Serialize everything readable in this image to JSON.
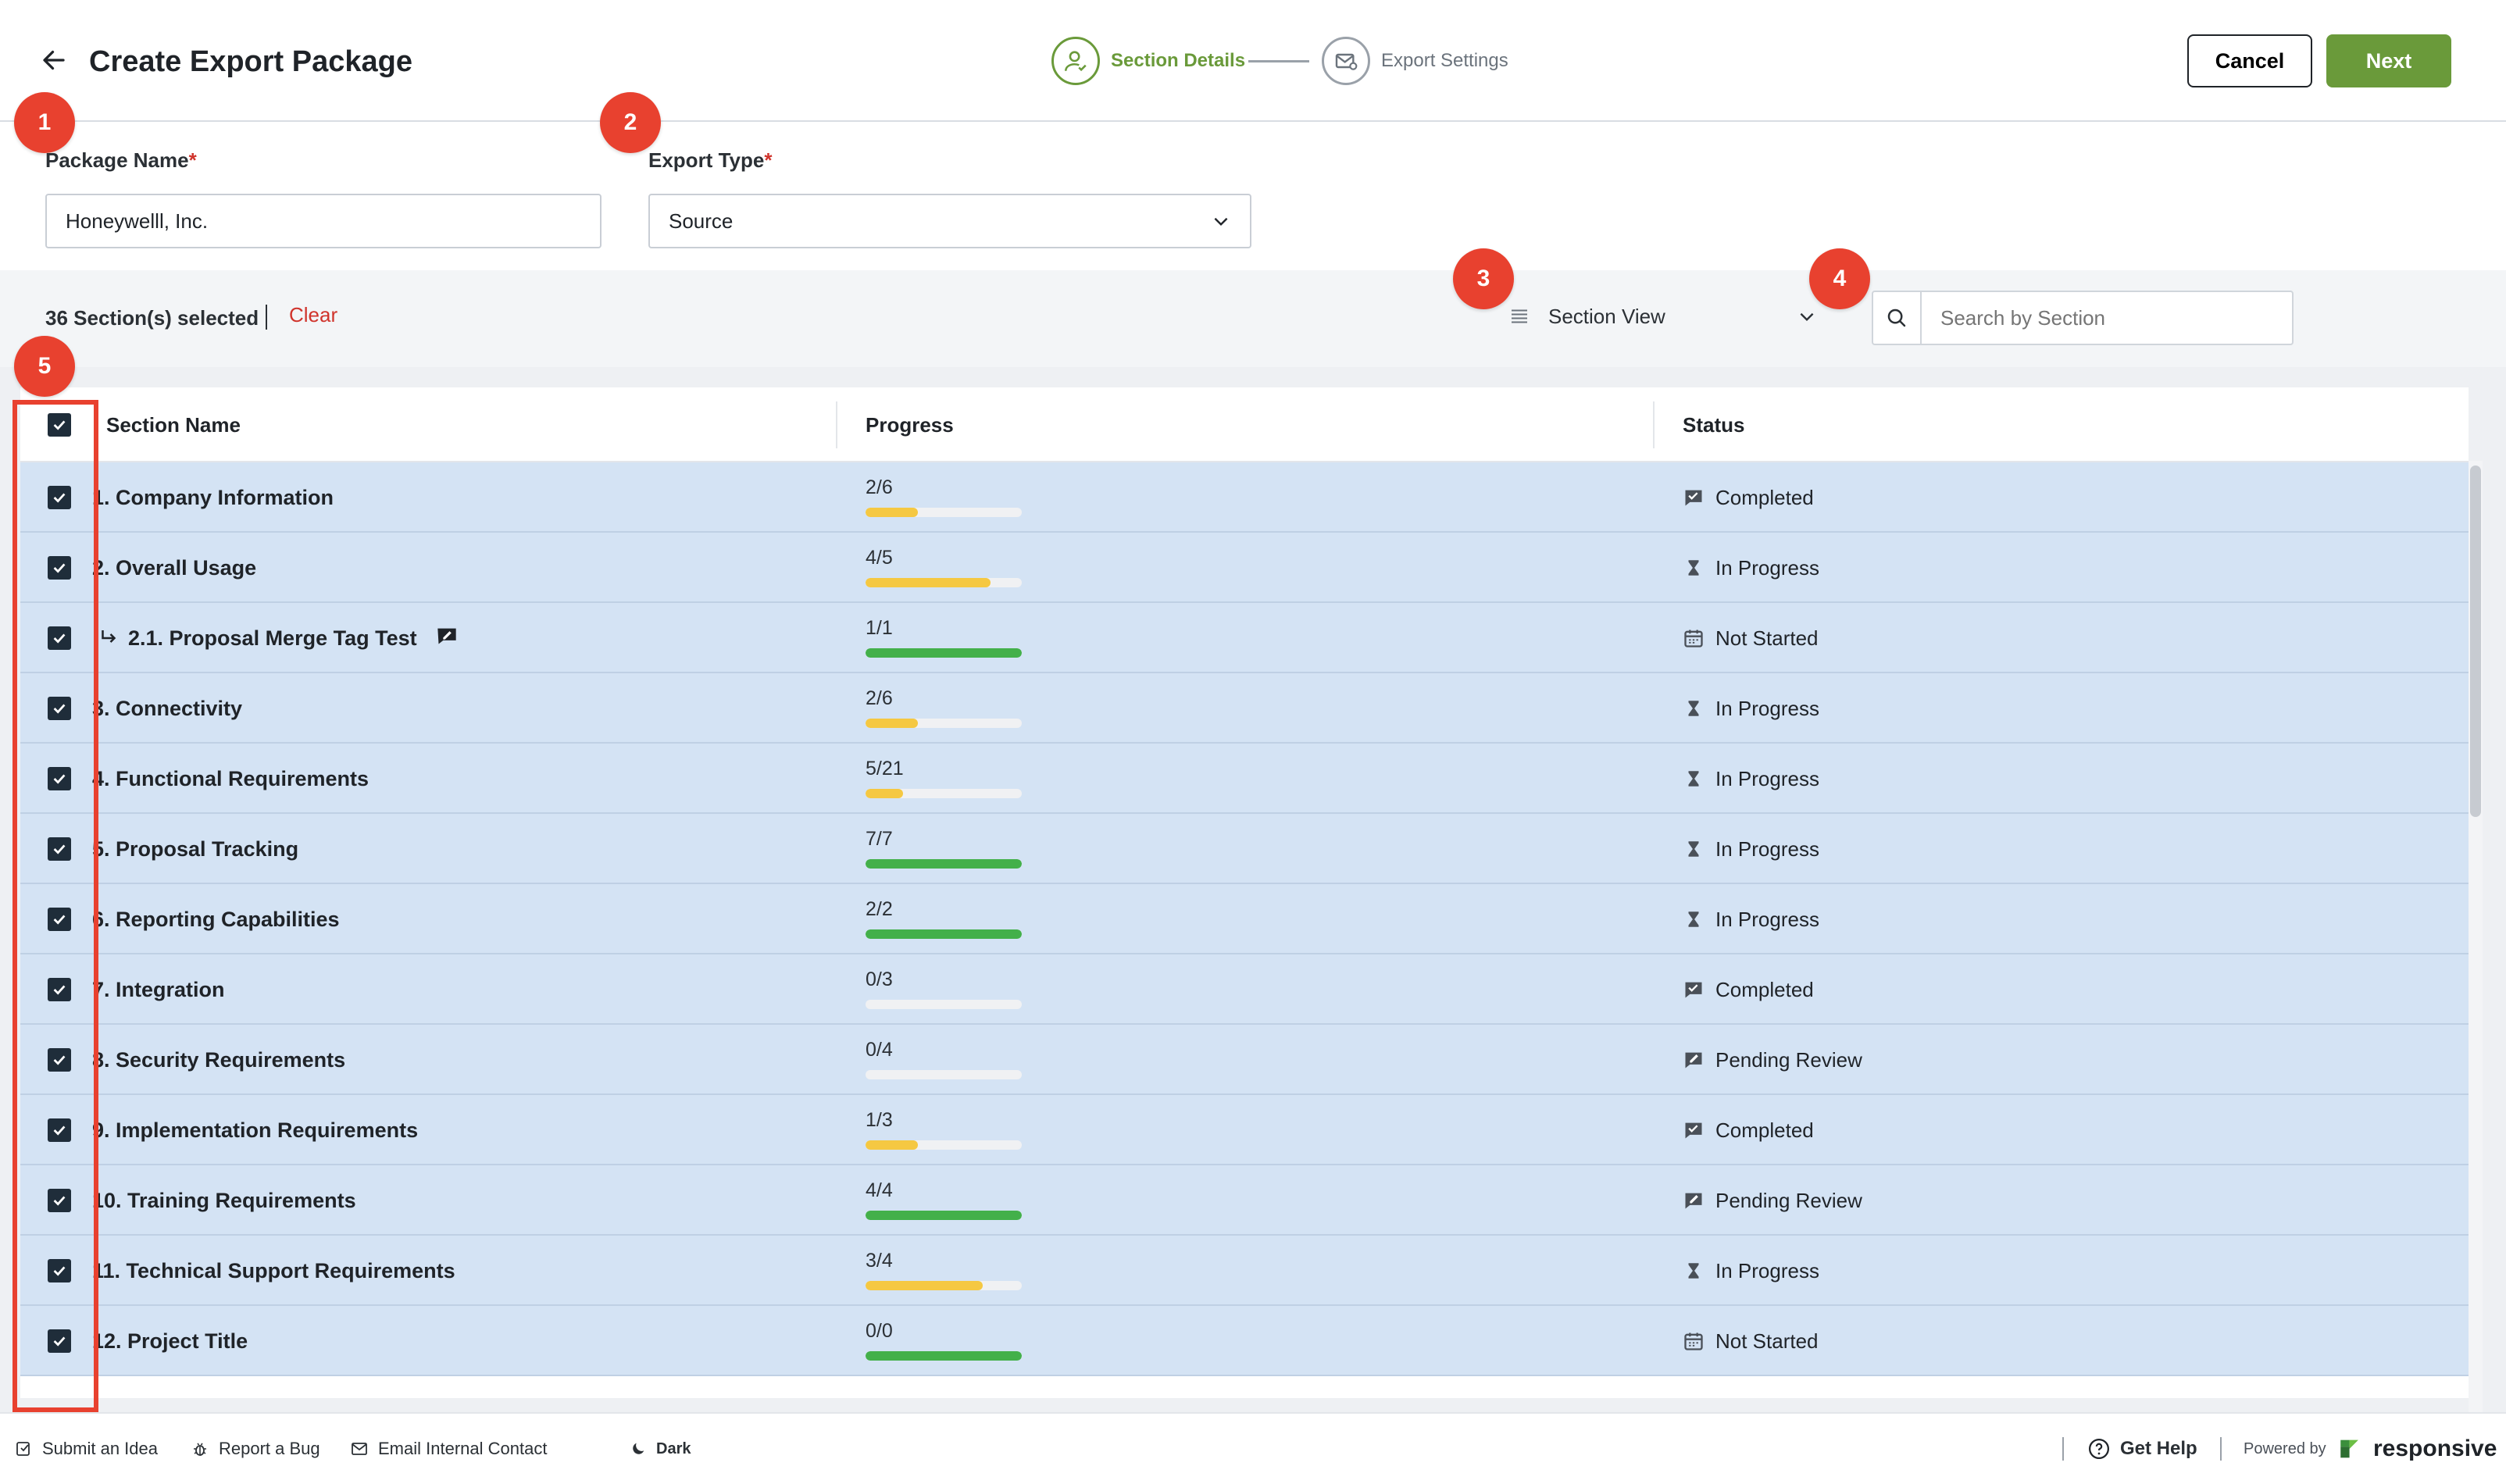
{
  "header": {
    "title": "Create Export Package",
    "steps": [
      {
        "label": "Section Details",
        "active": true
      },
      {
        "label": "Export Settings",
        "active": false
      }
    ],
    "cancel_label": "Cancel",
    "next_label": "Next"
  },
  "markers": [
    "1",
    "2",
    "3",
    "4",
    "5"
  ],
  "form": {
    "package_name_label": "Package Name",
    "package_name_value": "Honeywelll, Inc.",
    "export_type_label": "Export Type",
    "export_type_value": "Source",
    "required_mark": "*"
  },
  "toolbar": {
    "selected_text": "36 Section(s) selected",
    "clear_label": "Clear",
    "view_label": "Section View",
    "search_placeholder": "Search by Section"
  },
  "table": {
    "columns": [
      "Section Name",
      "Progress",
      "Status"
    ],
    "rows": [
      {
        "name": "1. Company Information",
        "progress": "2/6",
        "fraction": 0.333,
        "color": "#f5c842",
        "status": "Completed",
        "status_icon": "completed-icon",
        "indent": false
      },
      {
        "name": "2. Overall Usage",
        "progress": "4/5",
        "fraction": 0.8,
        "color": "#f5c842",
        "status": "In Progress",
        "status_icon": "hourglass-icon",
        "indent": false
      },
      {
        "name": "2.1. Proposal Merge Tag Test",
        "progress": "1/1",
        "fraction": 1.0,
        "color": "#43b04a",
        "status": "Not Started",
        "status_icon": "calendar-icon",
        "indent": true
      },
      {
        "name": "3. Connectivity",
        "progress": "2/6",
        "fraction": 0.333,
        "color": "#f5c842",
        "status": "In Progress",
        "status_icon": "hourglass-icon",
        "indent": false
      },
      {
        "name": "4. Functional Requirements",
        "progress": "5/21",
        "fraction": 0.238,
        "color": "#f5c842",
        "status": "In Progress",
        "status_icon": "hourglass-icon",
        "indent": false
      },
      {
        "name": "5. Proposal Tracking",
        "progress": "7/7",
        "fraction": 1.0,
        "color": "#43b04a",
        "status": "In Progress",
        "status_icon": "hourglass-icon",
        "indent": false
      },
      {
        "name": "6. Reporting Capabilities",
        "progress": "2/2",
        "fraction": 1.0,
        "color": "#43b04a",
        "status": "In Progress",
        "status_icon": "hourglass-icon",
        "indent": false
      },
      {
        "name": "7. Integration",
        "progress": "0/3",
        "fraction": 0,
        "color": "#f5c842",
        "status": "Completed",
        "status_icon": "completed-icon",
        "indent": false
      },
      {
        "name": "8. Security Requirements",
        "progress": "0/4",
        "fraction": 0,
        "color": "#f5c842",
        "status": "Pending Review",
        "status_icon": "review-icon",
        "indent": false
      },
      {
        "name": "9. Implementation Requirements",
        "progress": "1/3",
        "fraction": 0.333,
        "color": "#f5c842",
        "status": "Completed",
        "status_icon": "completed-icon",
        "indent": false
      },
      {
        "name": "10. Training Requirements",
        "progress": "4/4",
        "fraction": 1.0,
        "color": "#43b04a",
        "status": "Pending Review",
        "status_icon": "review-icon",
        "indent": false
      },
      {
        "name": "11. Technical Support Requirements",
        "progress": "3/4",
        "fraction": 0.75,
        "color": "#f5c842",
        "status": "In Progress",
        "status_icon": "hourglass-icon",
        "indent": false
      },
      {
        "name": "12. Project Title",
        "progress": "0/0",
        "fraction": 1.0,
        "color": "#43b04a",
        "status": "Not Started",
        "status_icon": "calendar-icon",
        "indent": false
      }
    ]
  },
  "footer": {
    "submit_idea": "Submit an Idea",
    "report_bug": "Report a Bug",
    "email_contact": "Email Internal Contact",
    "dark_mode": "Dark",
    "get_help": "Get Help",
    "powered_by": "Powered by",
    "brand": "responsive"
  },
  "colors": {
    "accent_green": "#6a9a3a",
    "marker_red": "#e8412f",
    "row_selected": "#d4e3f4",
    "clear_red": "#d0342c"
  }
}
